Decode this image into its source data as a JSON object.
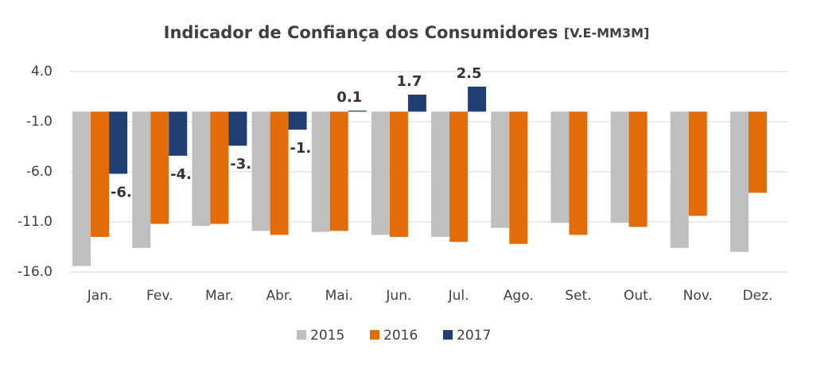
{
  "chart_data": {
    "type": "bar",
    "title": "Indicador de Confiança dos Consumidores",
    "subtitle": "[V.E-MM3M]",
    "categories": [
      "Jan.",
      "Fev.",
      "Mar.",
      "Abr.",
      "Mai.",
      "Jun.",
      "Jul.",
      "Ago.",
      "Set.",
      "Out.",
      "Nov.",
      "Dez."
    ],
    "series": [
      {
        "name": "2015",
        "color": "#bfbfbf",
        "values": [
          -15.4,
          -13.6,
          -11.4,
          -11.9,
          -12.0,
          -12.3,
          -12.5,
          -11.6,
          -11.1,
          -11.1,
          -13.6,
          -14.0
        ]
      },
      {
        "name": "2016",
        "color": "#e36c0a",
        "values": [
          -12.5,
          -11.2,
          -11.2,
          -12.3,
          -11.9,
          -12.5,
          -13.0,
          -13.2,
          -12.3,
          -11.5,
          -10.4,
          -8.1
        ]
      },
      {
        "name": "2017",
        "color": "#1f3f73",
        "values": [
          -6.2,
          -4.4,
          -3.4,
          -1.8,
          0.1,
          1.7,
          2.5,
          null,
          null,
          null,
          null,
          null
        ],
        "data_labels": true
      }
    ],
    "ylim": [
      -16,
      4
    ],
    "yticks": [
      {
        "value": 4,
        "label": "4.0"
      },
      {
        "value": -1,
        "label": "-1.0"
      },
      {
        "value": -6,
        "label": "-6.0"
      },
      {
        "value": -11,
        "label": "-11.0"
      },
      {
        "value": -16,
        "label": "-16.0"
      }
    ],
    "grid": true,
    "legend": "bottom"
  }
}
